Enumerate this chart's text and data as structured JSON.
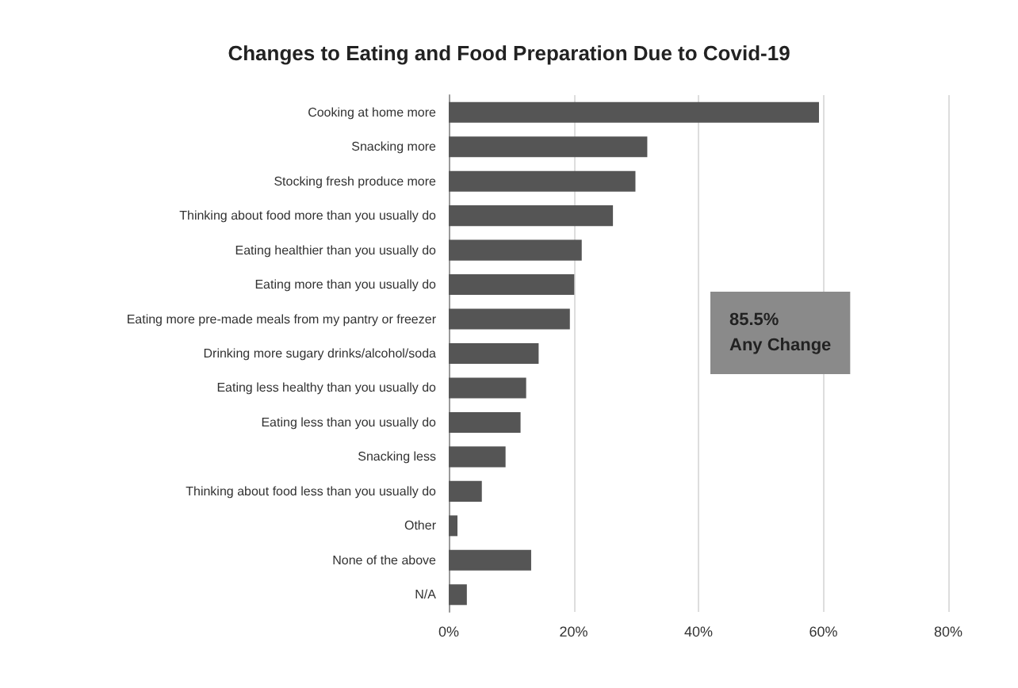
{
  "chart_data": {
    "type": "bar",
    "orientation": "horizontal",
    "title": "Changes to Eating and Food Preparation Due to Covid-19",
    "categories": [
      "Cooking at home more",
      "Snacking more",
      "Stocking fresh produce more",
      "Thinking about food more than you usually do",
      "Eating healthier than you usually do",
      "Eating more than you usually do",
      "Eating more pre-made meals from my pantry or freezer",
      "Drinking more sugary drinks/alcohol/soda",
      "Eating less healthy than you usually do",
      "Eating less than you usually do",
      "Snacking less",
      "Thinking about food less than you usually do",
      "Other",
      "None of the above",
      "N/A"
    ],
    "values": [
      59.3,
      31.8,
      29.9,
      26.3,
      21.3,
      20.1,
      19.4,
      14.4,
      12.4,
      11.5,
      9.1,
      5.3,
      1.4,
      13.2,
      2.9
    ],
    "color": "#555555",
    "xlim": [
      0,
      80
    ],
    "xticks": [
      {
        "value": 0,
        "label": "0%"
      },
      {
        "value": 20,
        "label": "20%"
      },
      {
        "value": 40,
        "label": "40%"
      },
      {
        "value": 60,
        "label": "60%"
      },
      {
        "value": 80,
        "label": "80%"
      }
    ],
    "grid": "x",
    "annotations": [
      "85.5%\nAny Change"
    ]
  }
}
